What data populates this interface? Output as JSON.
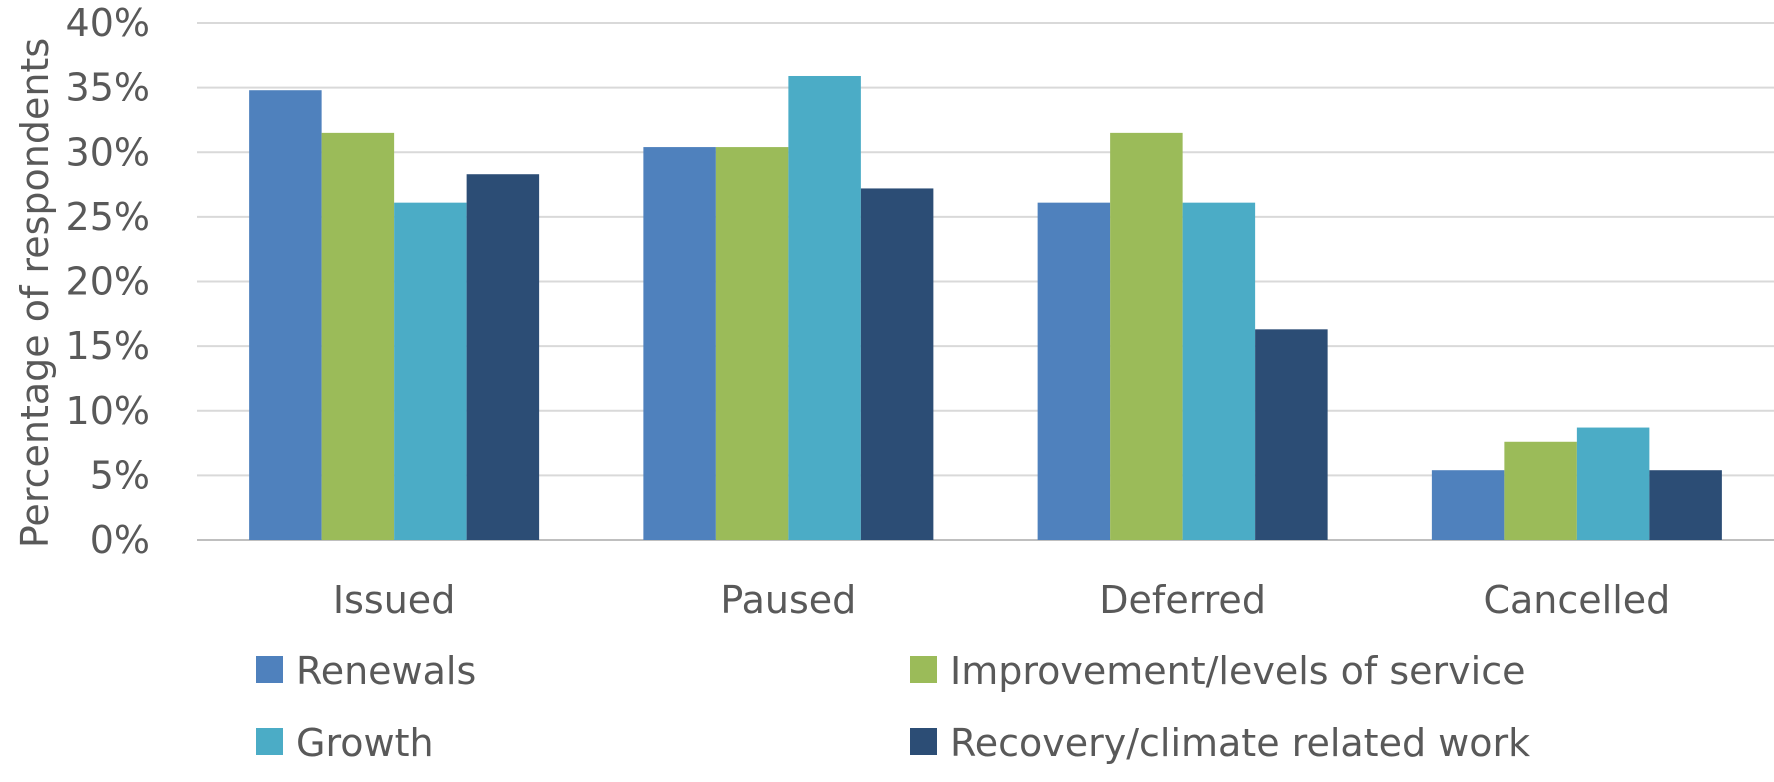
{
  "chart_data": {
    "type": "bar",
    "title": "",
    "xlabel": "",
    "ylabel": "Percentage of respondents",
    "ylim": [
      0,
      40
    ],
    "y_ticks": [
      "0%",
      "5%",
      "10%",
      "15%",
      "20%",
      "25%",
      "30%",
      "35%",
      "40%"
    ],
    "y_tick_values": [
      0,
      5,
      10,
      15,
      20,
      25,
      30,
      35,
      40
    ],
    "grid": true,
    "legend_position": "bottom",
    "categories": [
      "Issued",
      "Paused",
      "Deferred",
      "Cancelled"
    ],
    "series": [
      {
        "name": "Renewals",
        "color": "#4F81BD",
        "values": [
          34.8,
          30.4,
          26.1,
          5.4
        ]
      },
      {
        "name": "Improvement/levels of service",
        "color": "#9BBB59",
        "values": [
          31.5,
          30.4,
          31.5,
          7.6
        ]
      },
      {
        "name": "Growth",
        "color": "#4BACC6",
        "values": [
          26.1,
          35.9,
          26.1,
          8.7
        ]
      },
      {
        "name": "Recovery/climate related work",
        "color": "#2C4D75",
        "values": [
          28.3,
          27.2,
          16.3,
          5.4
        ]
      }
    ]
  }
}
